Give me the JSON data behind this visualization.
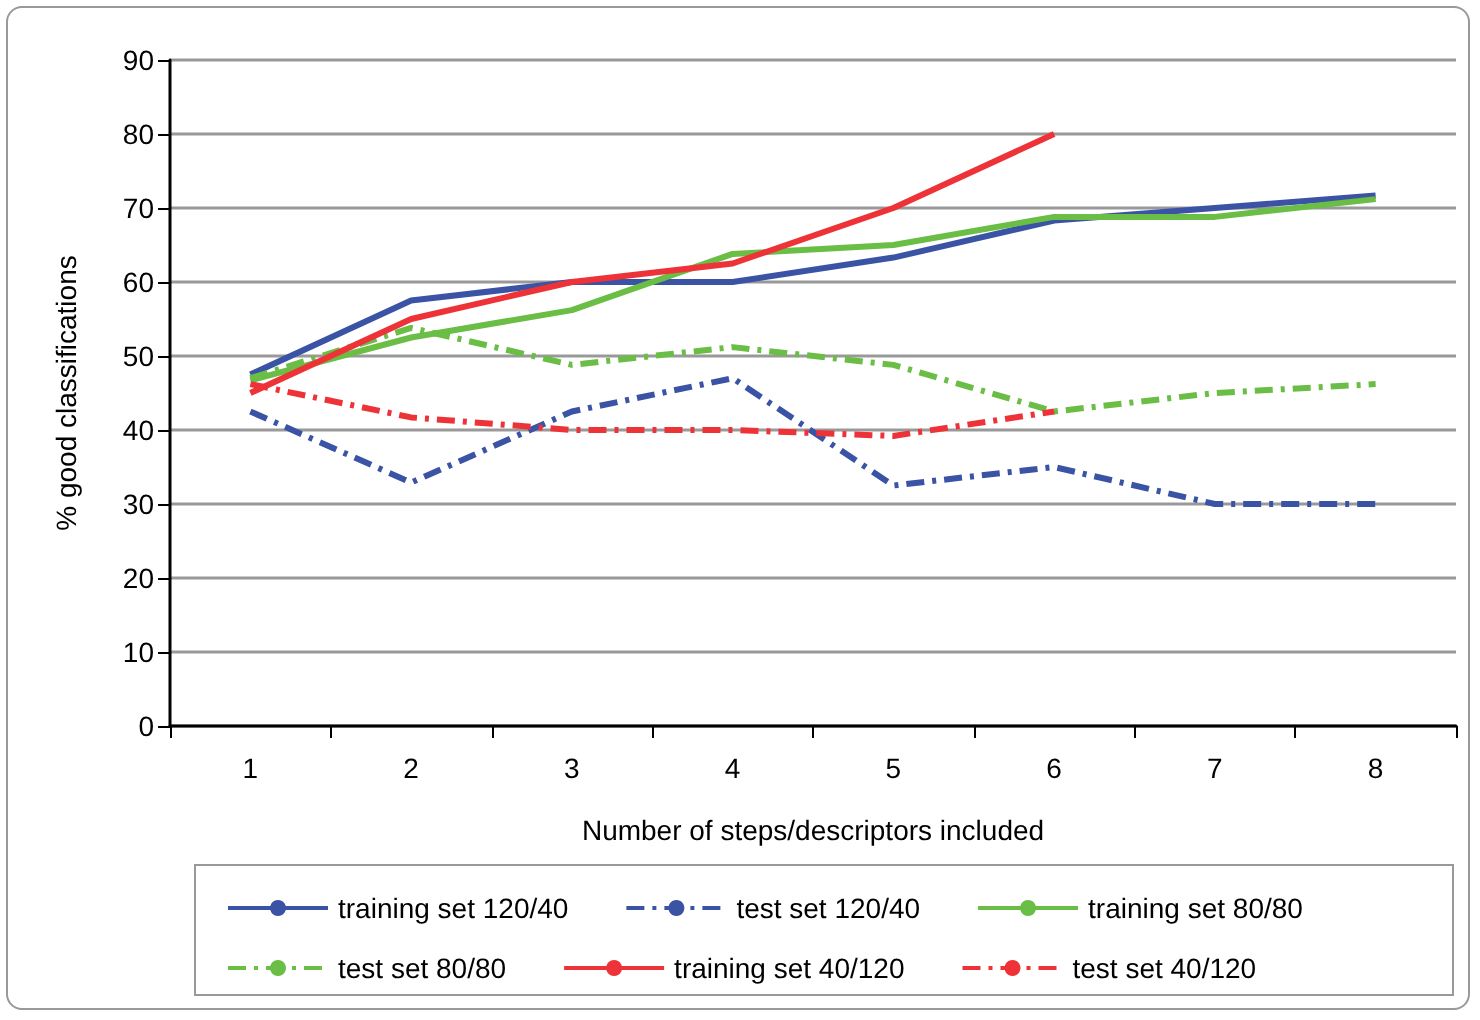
{
  "chart_data": {
    "type": "line",
    "xlabel": "Number of steps/descriptors included",
    "ylabel": "% good classifications",
    "categories": [
      "1",
      "2",
      "3",
      "4",
      "5",
      "6",
      "7",
      "8"
    ],
    "ylim": [
      0,
      90
    ],
    "yticks": [
      0,
      10,
      20,
      30,
      40,
      50,
      60,
      70,
      80,
      90
    ],
    "grid": "y",
    "legend": "bottom",
    "marker": "none",
    "series": [
      {
        "name": "training set 120/40",
        "color": "#3a53a4",
        "line_style": "solid",
        "values": [
          47.5,
          57.5,
          60,
          60,
          63.3,
          68.3,
          70,
          71.7
        ]
      },
      {
        "name": "test set 120/40",
        "color": "#3a53a4",
        "line_style": "dashed",
        "values": [
          42.5,
          32.9,
          42.5,
          47,
          32.5,
          35,
          30,
          30
        ]
      },
      {
        "name": "training set 80/80",
        "color": "#6abd45",
        "line_style": "solid",
        "values": [
          46.7,
          52.5,
          56.2,
          63.8,
          65,
          68.8,
          68.8,
          71.2
        ]
      },
      {
        "name": "test set 80/80",
        "color": "#6abd45",
        "line_style": "dashed",
        "values": [
          47,
          53.8,
          48.8,
          51.2,
          48.8,
          42.5,
          45,
          46.2
        ]
      },
      {
        "name": "training set 40/120",
        "color": "#ee3338",
        "line_style": "solid",
        "values": [
          45,
          55,
          60,
          62.5,
          70,
          80,
          null,
          null
        ]
      },
      {
        "name": "test set 40/120",
        "color": "#ee3338",
        "line_style": "dashed",
        "values": [
          46.2,
          41.7,
          40,
          40,
          39.2,
          42.5,
          null,
          null
        ]
      }
    ]
  }
}
